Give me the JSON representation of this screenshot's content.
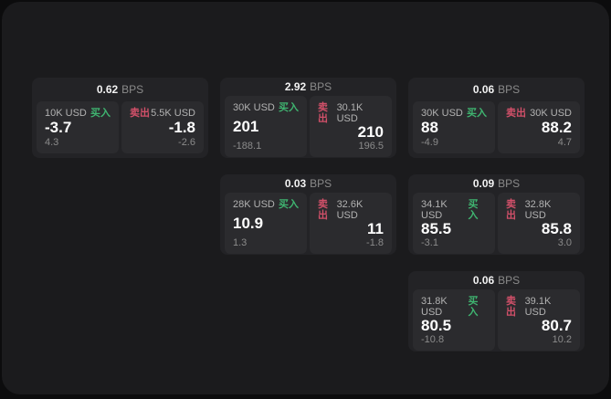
{
  "page": {
    "bps_suffix": "BPS"
  },
  "labels": {
    "buy": "买入",
    "sell": "卖出"
  },
  "colors": {
    "buy_green": "#3fb470",
    "sell_red": "#d15069",
    "window_bg": "#1b1b1d",
    "card_bg": "#232326",
    "tile_bg": "#2b2b2e"
  },
  "cards": [
    {
      "bps": "0.62",
      "grid": {
        "row": 1,
        "col": 1
      },
      "buy": {
        "amount": "10K USD",
        "value": "-3.7",
        "delta": "4.3"
      },
      "sell": {
        "amount": "5.5K USD",
        "value": "-1.8",
        "delta": "-2.6"
      }
    },
    {
      "bps": "2.92",
      "grid": {
        "row": 1,
        "col": 2
      },
      "buy": {
        "amount": "30K USD",
        "value": "201",
        "delta": "-188.1"
      },
      "sell": {
        "amount": "30.1K USD",
        "value": "210",
        "delta": "196.5"
      }
    },
    {
      "bps": "0.06",
      "grid": {
        "row": 1,
        "col": 3
      },
      "buy": {
        "amount": "30K USD",
        "value": "88",
        "delta": "-4.9"
      },
      "sell": {
        "amount": "30K USD",
        "value": "88.2",
        "delta": "4.7"
      }
    },
    {
      "bps": "0.03",
      "grid": {
        "row": 2,
        "col": 2
      },
      "buy": {
        "amount": "28K USD",
        "value": "10.9",
        "delta": "1.3"
      },
      "sell": {
        "amount": "32.6K USD",
        "value": "11",
        "delta": "-1.8"
      }
    },
    {
      "bps": "0.09",
      "grid": {
        "row": 2,
        "col": 3
      },
      "buy": {
        "amount": "34.1K USD",
        "value": "85.5",
        "delta": "-3.1"
      },
      "sell": {
        "amount": "32.8K USD",
        "value": "85.8",
        "delta": "3.0"
      }
    },
    {
      "bps": "0.06",
      "grid": {
        "row": 3,
        "col": 3
      },
      "buy": {
        "amount": "31.8K USD",
        "value": "80.5",
        "delta": "-10.8"
      },
      "sell": {
        "amount": "39.1K USD",
        "value": "80.7",
        "delta": "10.2"
      }
    }
  ]
}
